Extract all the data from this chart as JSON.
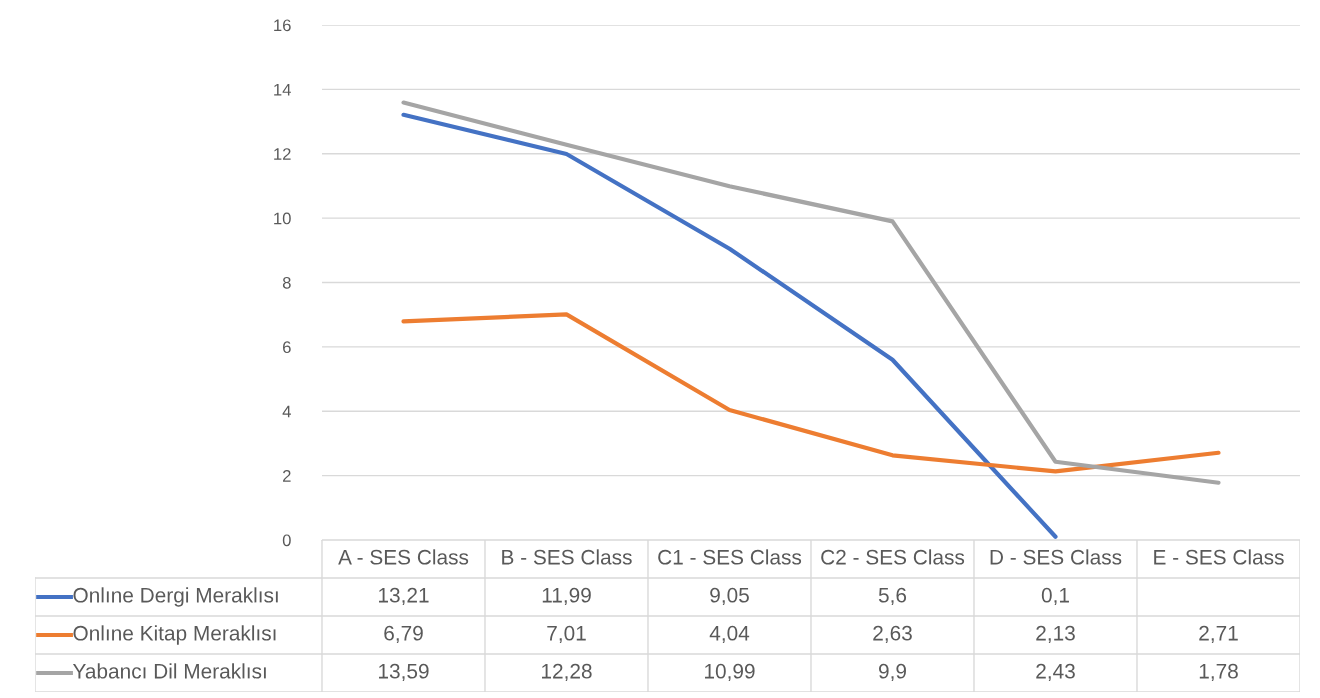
{
  "chart_data": {
    "type": "line",
    "categories": [
      "A - SES Class",
      "B - SES Class",
      "C1 - SES Class",
      "C2 - SES Class",
      "D - SES Class",
      "E - SES Class"
    ],
    "series": [
      {
        "name": "Onlıne Dergi Meraklısı",
        "color": "#4472c4",
        "values": [
          13.21,
          11.99,
          9.05,
          5.6,
          0.1,
          null
        ],
        "value_labels": [
          "13,21",
          "11,99",
          "9,05",
          "5,6",
          "0,1",
          null
        ]
      },
      {
        "name": "Onlıne Kitap Meraklısı",
        "color": "#ed7d31",
        "values": [
          6.79,
          7.01,
          4.04,
          2.63,
          2.13,
          2.71
        ],
        "value_labels": [
          "6,79",
          "7,01",
          "4,04",
          "2,63",
          "2,13",
          "2,71"
        ]
      },
      {
        "name": "Yabancı Dil Meraklısı",
        "color": "#a5a5a5",
        "values": [
          13.59,
          12.28,
          10.99,
          9.9,
          2.43,
          1.78
        ],
        "value_labels": [
          "13,59",
          "12,28",
          "10,99",
          "9,9",
          "2,43",
          "1,78"
        ]
      }
    ],
    "ylim": [
      0,
      16
    ],
    "yticks": [
      0,
      2,
      4,
      6,
      8,
      10,
      12,
      14,
      16
    ],
    "grid": "y",
    "legend": "bottom left",
    "marker": "none",
    "line_style": "solid"
  }
}
